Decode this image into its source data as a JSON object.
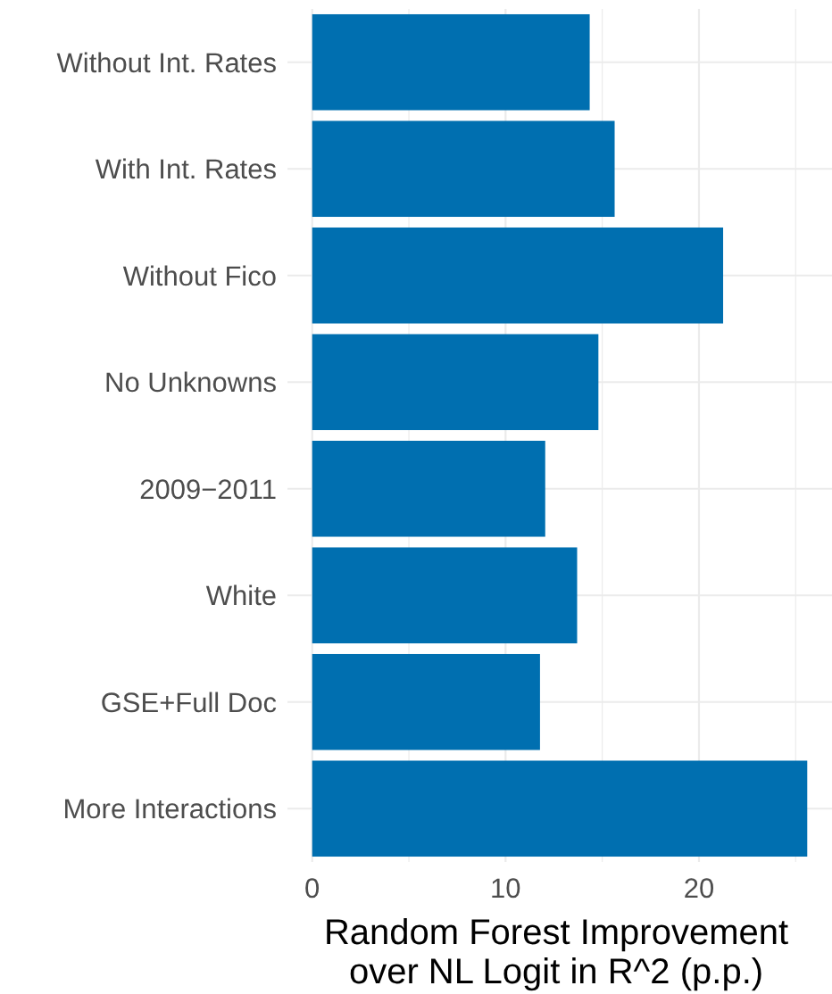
{
  "chart_data": {
    "type": "bar",
    "orientation": "horizontal",
    "xlabel": "Random Forest Improvement over NL Logit in R^2 (p.p.)",
    "categories": [
      "Without Int. Rates",
      "With Int. Rates",
      "Without Fico",
      "No Unknowns",
      "2009−2011",
      "White",
      "GSE+Full Doc",
      "More Interactions"
    ],
    "values": [
      14.35,
      15.64,
      21.25,
      14.8,
      12.05,
      13.7,
      11.78,
      25.6
    ],
    "color": "#006fb0",
    "xlim": [
      -1.28,
      26.88
    ],
    "xticks": [
      0,
      {
        "value": 5,
        "label": null
      },
      10,
      {
        "value": 15,
        "label": null
      },
      20,
      {
        "value": 25,
        "label": null
      }
    ],
    "grid": true
  }
}
